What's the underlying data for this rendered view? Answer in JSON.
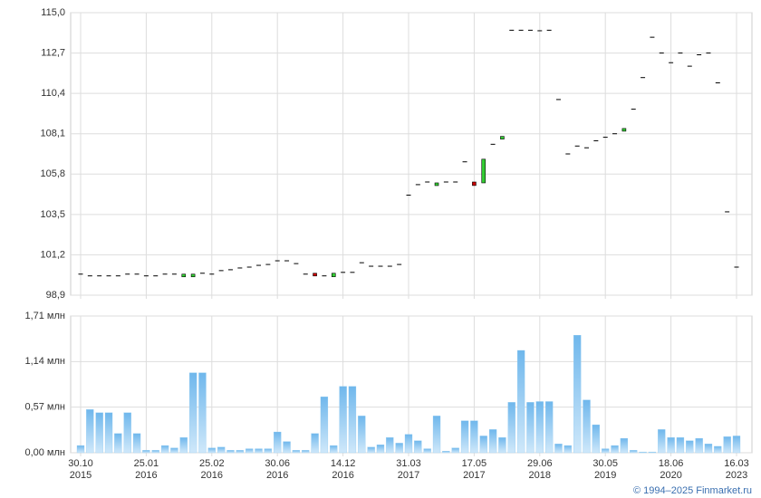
{
  "credit": "© 1994–2025 Finmarket.ru",
  "chart_data": [
    {
      "type": "candlestick",
      "open": [
        100.1,
        100.0,
        100.0,
        100.0,
        100.0,
        100.1,
        100.1,
        100.0,
        100.0,
        100.1,
        100.1,
        100.05,
        100.05,
        100.15,
        100.1,
        100.3,
        100.35,
        100.45,
        100.5,
        100.6,
        100.65,
        100.86,
        100.86,
        100.7,
        100.1,
        100.15,
        100.0,
        99.95,
        100.2,
        100.2,
        100.75,
        100.55,
        100.55,
        100.55,
        100.65,
        104.6,
        105.2,
        105.35,
        105.25,
        105.35,
        105.35,
        106.5,
        105.35,
        105.3,
        107.5,
        107.85,
        114.0,
        114.0,
        114.0,
        113.97,
        114.0,
        110.05,
        106.95,
        107.4,
        107.3,
        107.7,
        107.9,
        108.1,
        108.3,
        109.5,
        111.3,
        113.6,
        112.7,
        112.15,
        112.7,
        111.95,
        112.6,
        112.7,
        111.0,
        103.65,
        100.5
      ],
      "close": [
        100.1,
        100.0,
        100.0,
        100.0,
        100.0,
        100.1,
        100.1,
        100.0,
        100.0,
        100.1,
        100.1,
        100.1,
        100.1,
        100.15,
        100.1,
        100.3,
        100.35,
        100.45,
        100.5,
        100.6,
        100.65,
        100.86,
        100.86,
        100.7,
        100.1,
        100.1,
        100.0,
        100.15,
        100.2,
        100.2,
        100.75,
        100.55,
        100.55,
        100.55,
        100.65,
        104.6,
        105.2,
        105.35,
        105.3,
        105.35,
        105.35,
        106.5,
        105.15,
        106.65,
        107.5,
        107.95,
        114.0,
        114.0,
        114.0,
        113.97,
        114.0,
        110.05,
        106.95,
        107.4,
        107.3,
        107.7,
        107.9,
        108.1,
        108.4,
        109.5,
        111.3,
        113.6,
        112.7,
        112.15,
        112.7,
        111.95,
        112.6,
        112.7,
        111.0,
        103.65,
        100.5
      ],
      "up_color": "#33cc33",
      "down_color": "#cc0000",
      "ylim": [
        98.9,
        115.0
      ],
      "yticks": [
        {
          "value": 98.9,
          "label": "98,9"
        },
        {
          "value": 101.2,
          "label": "101,2"
        },
        {
          "value": 103.5,
          "label": "103,5"
        },
        {
          "value": 105.8,
          "label": "105,8"
        },
        {
          "value": 108.1,
          "label": "108,1"
        },
        {
          "value": 110.4,
          "label": "110,4"
        },
        {
          "value": 112.7,
          "label": "112,7"
        },
        {
          "value": 115.0,
          "label": "115,0"
        }
      ],
      "grid": true
    },
    {
      "type": "bar",
      "categories": [
        "30.10\n2015",
        null,
        null,
        null,
        null,
        null,
        null,
        "25.01\n2016",
        null,
        null,
        null,
        null,
        null,
        null,
        "25.02\n2016",
        null,
        null,
        null,
        null,
        null,
        null,
        "30.06\n2016",
        null,
        null,
        null,
        null,
        null,
        null,
        "14.12\n2016",
        null,
        null,
        null,
        null,
        null,
        null,
        "31.03\n2017",
        null,
        null,
        null,
        null,
        null,
        null,
        "17.05\n2017",
        null,
        null,
        null,
        null,
        null,
        null,
        "29.06\n2018",
        null,
        null,
        null,
        null,
        null,
        null,
        "30.05\n2019",
        null,
        null,
        null,
        null,
        null,
        null,
        "18.06\n2020",
        null,
        null,
        null,
        null,
        null,
        null,
        "16.03\n2023"
      ],
      "values": [
        0.09,
        0.54,
        0.5,
        0.5,
        0.24,
        0.5,
        0.24,
        0.03,
        0.03,
        0.09,
        0.06,
        0.19,
        1.0,
        1.0,
        0.06,
        0.07,
        0.03,
        0.03,
        0.05,
        0.05,
        0.05,
        0.26,
        0.14,
        0.03,
        0.03,
        0.24,
        0.7,
        0.09,
        0.83,
        0.83,
        0.46,
        0.07,
        0.1,
        0.19,
        0.12,
        0.23,
        0.15,
        0.05,
        0.46,
        0.02,
        0.06,
        0.4,
        0.4,
        0.21,
        0.29,
        0.19,
        0.63,
        1.28,
        0.63,
        0.64,
        0.64,
        0.11,
        0.09,
        1.47,
        0.66,
        0.35,
        0.05,
        0.09,
        0.18,
        0.03,
        0.01,
        0.01,
        0.29,
        0.19,
        0.19,
        0.15,
        0.18,
        0.11,
        0.08,
        0.2,
        0.21
      ],
      "color": "#8cc8f0",
      "ylim": [
        0,
        1.71
      ],
      "yticks": [
        {
          "value": 0,
          "label": "0,00 млн"
        },
        {
          "value": 0.57,
          "label": "0,57 млн"
        },
        {
          "value": 1.14,
          "label": "1,14 млн"
        },
        {
          "value": 1.71,
          "label": "1,71 млн"
        }
      ],
      "grid": true
    }
  ]
}
